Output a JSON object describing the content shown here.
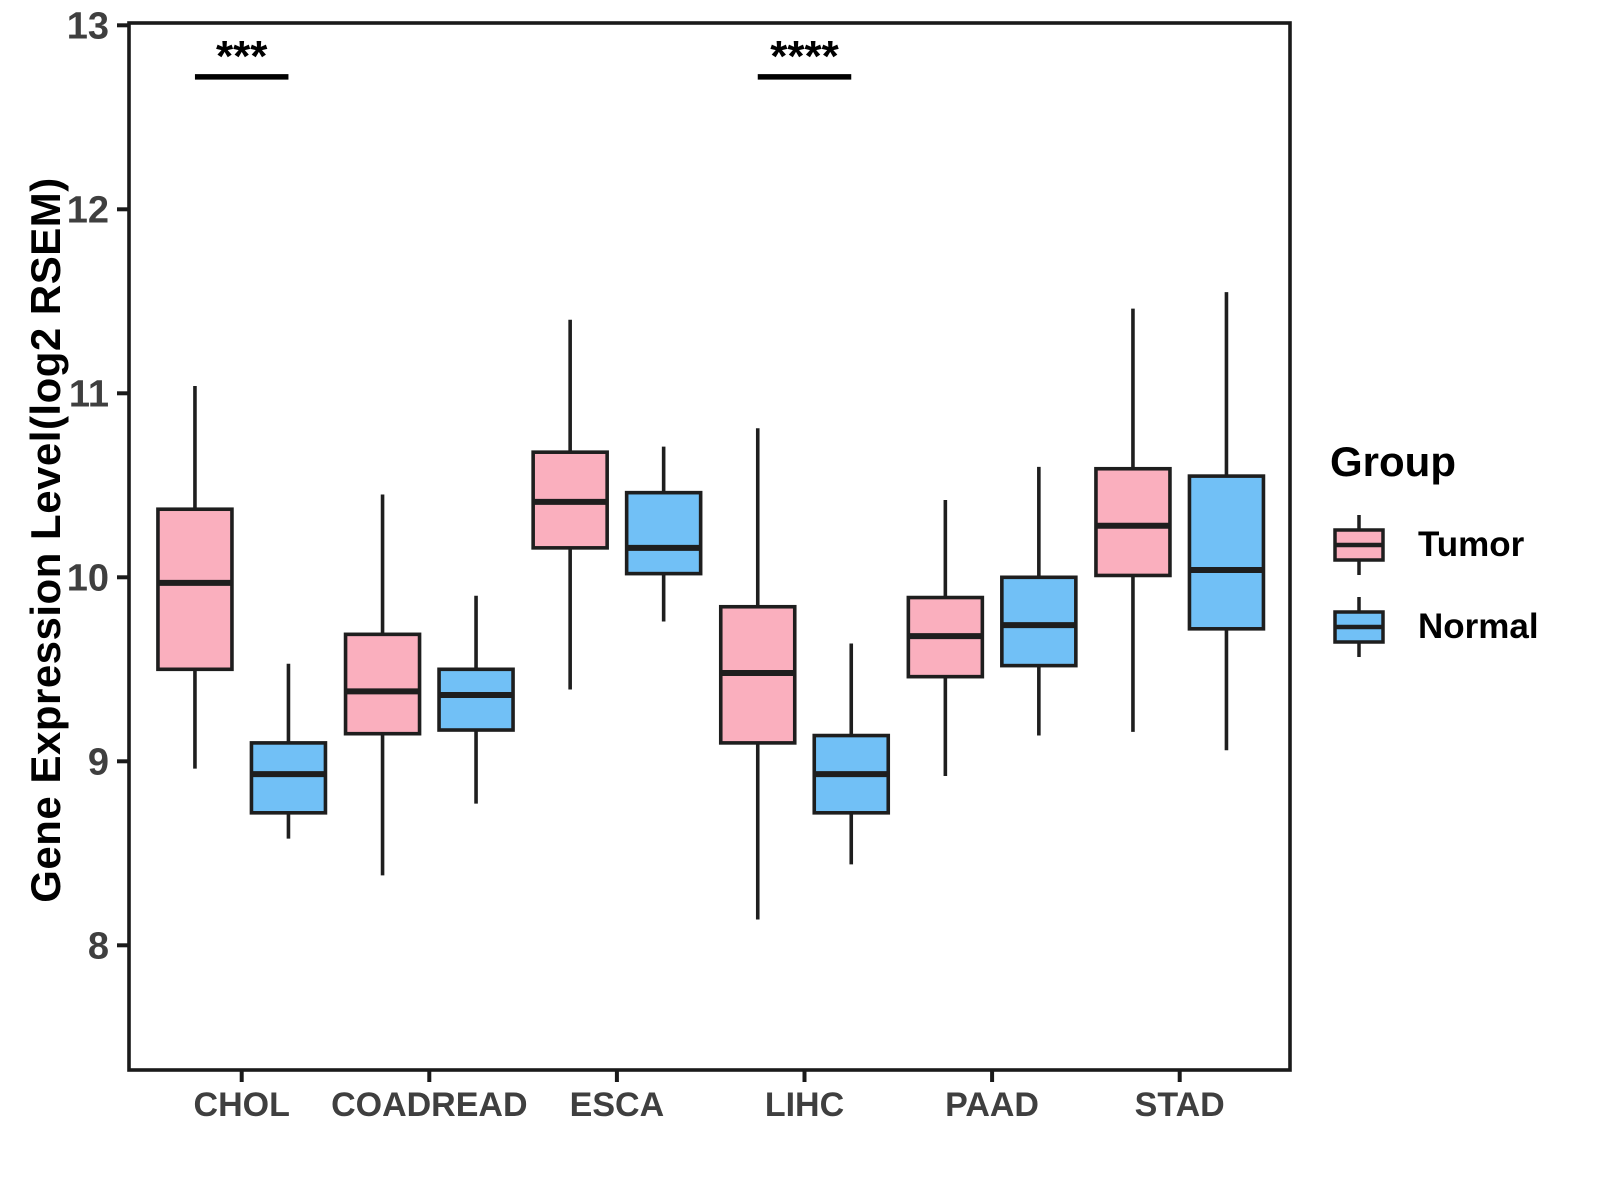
{
  "figure": {
    "background": "#FFFFFF"
  },
  "chart_data": {
    "type": "grouped_boxplot",
    "title": "",
    "xlabel": "",
    "ylabel": "Gene Expression Level(log2 RSEM)",
    "categories": [
      "CHOL",
      "COADREAD",
      "ESCA",
      "LIHC",
      "PAAD",
      "STAD"
    ],
    "y_ticks": [
      8,
      9,
      10,
      11,
      12,
      13
    ],
    "y_range": [
      7.32,
      13.01
    ],
    "grid": false,
    "stats_order": [
      "whisker_low",
      "q1",
      "median",
      "q3",
      "whisker_high"
    ],
    "series": [
      {
        "name": "Tumor",
        "fill": "#FAAFBE",
        "stats": {
          "CHOL": [
            8.96,
            9.5,
            9.97,
            10.37,
            11.04
          ],
          "COADREAD": [
            8.38,
            9.15,
            9.38,
            9.69,
            10.45
          ],
          "ESCA": [
            9.39,
            10.16,
            10.41,
            10.68,
            11.4
          ],
          "LIHC": [
            8.14,
            9.1,
            9.48,
            9.84,
            10.81
          ],
          "PAAD": [
            8.92,
            9.46,
            9.68,
            9.89,
            10.42
          ],
          "STAD": [
            9.16,
            10.01,
            10.28,
            10.59,
            11.46
          ]
        }
      },
      {
        "name": "Normal",
        "fill": "#71C0F6",
        "stats": {
          "CHOL": [
            8.58,
            8.72,
            8.93,
            9.1,
            9.53
          ],
          "COADREAD": [
            8.77,
            9.17,
            9.36,
            9.5,
            9.9
          ],
          "ESCA": [
            9.76,
            10.02,
            10.16,
            10.46,
            10.71
          ],
          "LIHC": [
            8.44,
            8.72,
            8.93,
            9.14,
            9.64
          ],
          "PAAD": [
            9.14,
            9.52,
            9.74,
            10.0,
            10.6
          ],
          "STAD": [
            9.06,
            9.72,
            10.04,
            10.55,
            11.55
          ]
        }
      }
    ],
    "annotations": [
      {
        "category": "CHOL",
        "label": "***",
        "bar_y": 12.72
      },
      {
        "category": "LIHC",
        "label": "****",
        "bar_y": 12.72
      }
    ],
    "legend": {
      "title": "Group",
      "position": "right",
      "items": [
        "Tumor",
        "Normal"
      ]
    },
    "colors": {
      "box_line": "#1E1E1E",
      "axis_line": "#1A1A1A",
      "tick_label": "#3F3F3F",
      "axis_title": "#000000",
      "annotation": "#000000"
    }
  }
}
